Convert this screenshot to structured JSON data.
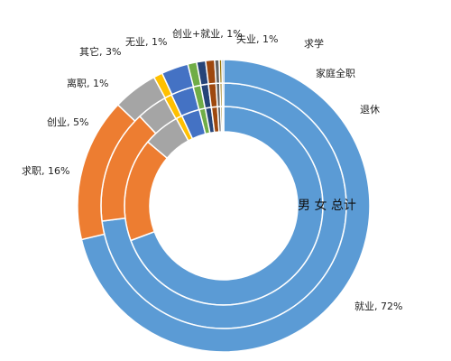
{
  "chart_data": {
    "type": "pie",
    "subtype": "multi-ring donut",
    "rings": [
      "男",
      "女",
      "总计"
    ],
    "center_label": "男 女 总计",
    "categories": [
      "就业",
      "求职",
      "创业",
      "离职",
      "其它",
      "无业",
      "创业+就业",
      "失业",
      "求学",
      "家庭全职",
      "退休"
    ],
    "series": [
      {
        "name": "男",
        "values": [
          70,
          17,
          6,
          1,
          3,
          1,
          1,
          1,
          0.5,
          0.3,
          0.2
        ]
      },
      {
        "name": "女",
        "values": [
          73,
          15,
          4,
          1,
          3,
          1,
          1,
          1,
          0.5,
          0.3,
          0.2
        ]
      },
      {
        "name": "总计",
        "values": [
          72,
          16,
          5,
          1,
          3,
          1,
          1,
          1,
          0.5,
          0.3,
          0.2
        ]
      }
    ],
    "data_labels": {
      "就业": "就业, 72%",
      "求职": "求职, 16%",
      "创业": "创业, 5%",
      "离职": "离职, 1%",
      "其它": "其它, 3%",
      "无业": "无业, 1%",
      "创业+就业": "创业+就业, 1%",
      "失业": "失业, 1%",
      "求学": "求学",
      "家庭全职": "家庭全职",
      "退休": "退休"
    },
    "colors": [
      "#5b9bd5",
      "#ed7d31",
      "#a5a5a5",
      "#ffc000",
      "#4472c4",
      "#70ad47",
      "#264478",
      "#9e480e",
      "#636363",
      "#997300",
      "#255e91"
    ],
    "legend": "none"
  }
}
